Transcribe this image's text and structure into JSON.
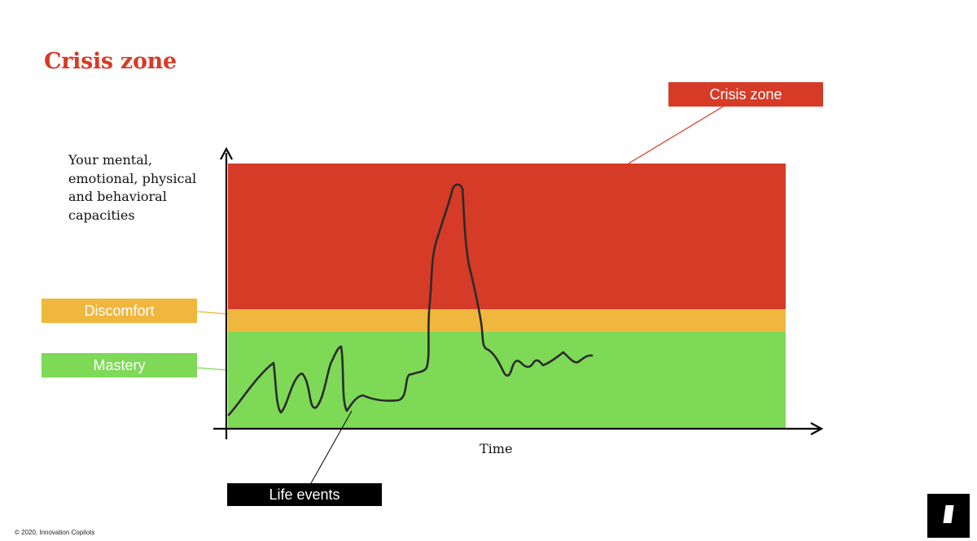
{
  "title": "Crisis zone",
  "y_axis_label": "Your mental, emotional, physical and behavioral capacities",
  "x_axis_label": "Time",
  "zones": {
    "crisis": {
      "label": "Crisis zone",
      "color": "#d63b27"
    },
    "discomfort": {
      "label": "Discomfort",
      "color": "#f0b73e"
    },
    "mastery": {
      "label": "Mastery",
      "color": "#7ed957"
    }
  },
  "annotation": {
    "label": "Life events",
    "color": "#000000"
  },
  "footer": {
    "copyright": "© 2020, Innovation Copilots",
    "logo_icon": "copilots-logo-icon"
  },
  "colors": {
    "title": "#d63b27",
    "curve": "#2b2b2b",
    "axis": "#000000"
  }
}
